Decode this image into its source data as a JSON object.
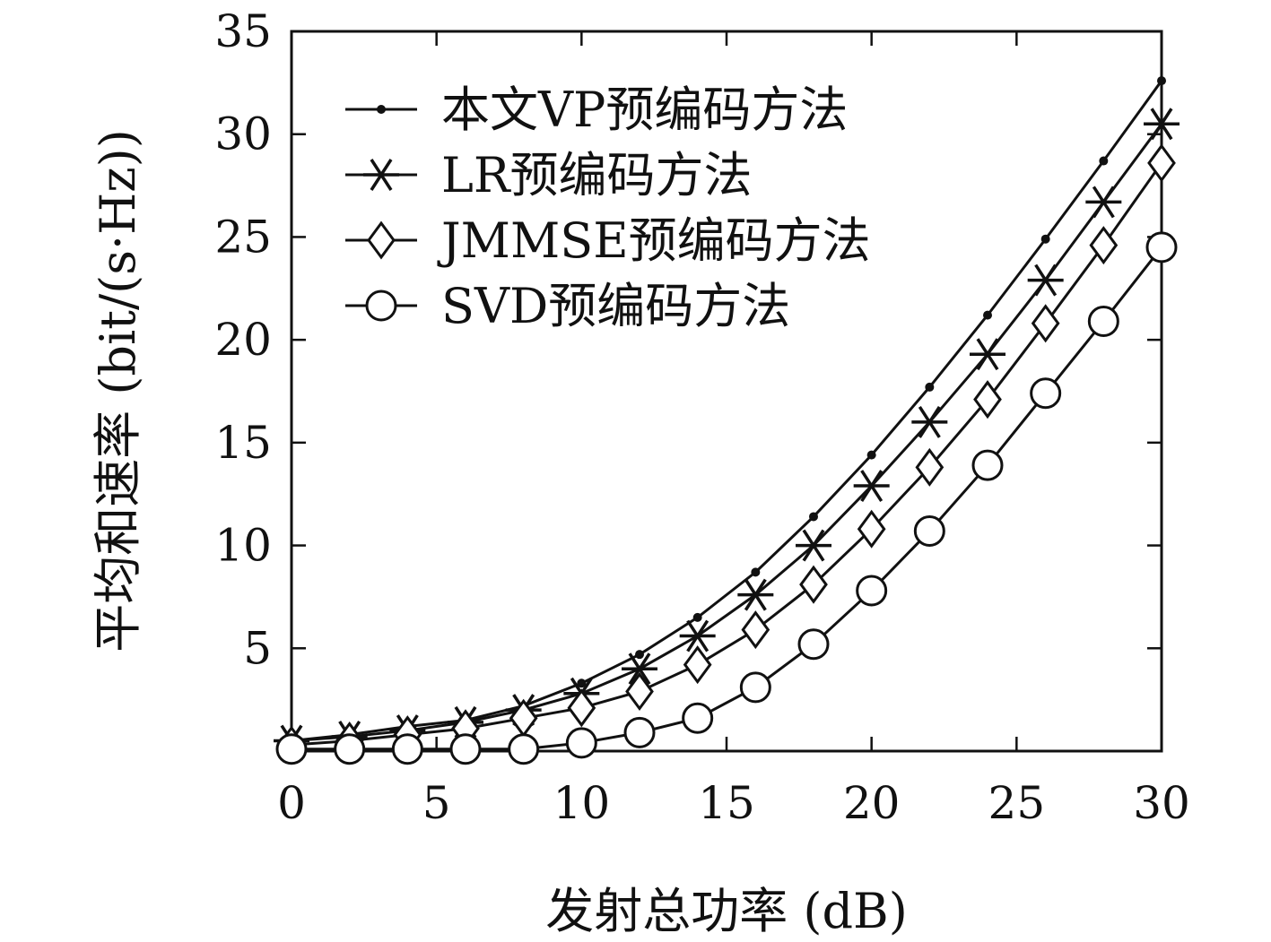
{
  "chart_data": {
    "type": "line",
    "xlabel": "发射总功率 (dB)",
    "ylabel": "平均和速率 (bit/(s·Hz))",
    "xlim": [
      0,
      30
    ],
    "ylim": [
      0,
      35
    ],
    "x_ticks": [
      0,
      5,
      10,
      15,
      20,
      25,
      30
    ],
    "y_ticks": [
      5,
      10,
      15,
      20,
      25,
      30,
      35
    ],
    "grid": false,
    "legend_position": "top-left",
    "x": [
      0,
      2,
      4,
      6,
      8,
      10,
      12,
      14,
      16,
      18,
      20,
      22,
      24,
      26,
      28,
      30
    ],
    "series": [
      {
        "name": "本文VP预编码方法",
        "marker": "dot",
        "values": [
          0.5,
          0.8,
          1.2,
          1.5,
          2.2,
          3.3,
          4.7,
          6.5,
          8.7,
          11.4,
          14.4,
          17.7,
          21.2,
          24.9,
          28.7,
          32.6
        ]
      },
      {
        "name": "LR预编码方法",
        "marker": "asterisk",
        "values": [
          0.5,
          0.7,
          1.0,
          1.4,
          2.0,
          2.8,
          4.0,
          5.6,
          7.6,
          10.0,
          12.9,
          16.0,
          19.3,
          22.9,
          26.7,
          30.5
        ]
      },
      {
        "name": "JMMSE预编码方法",
        "marker": "diamond",
        "values": [
          0.3,
          0.5,
          0.8,
          1.1,
          1.6,
          2.1,
          2.9,
          4.2,
          5.9,
          8.1,
          10.8,
          13.8,
          17.1,
          20.8,
          24.6,
          28.6
        ]
      },
      {
        "name": "SVD预编码方法",
        "marker": "circle",
        "values": [
          0.1,
          0.1,
          0.1,
          0.1,
          0.1,
          0.4,
          0.9,
          1.6,
          3.1,
          5.2,
          7.8,
          10.7,
          13.9,
          17.4,
          20.9,
          24.5
        ]
      }
    ]
  }
}
